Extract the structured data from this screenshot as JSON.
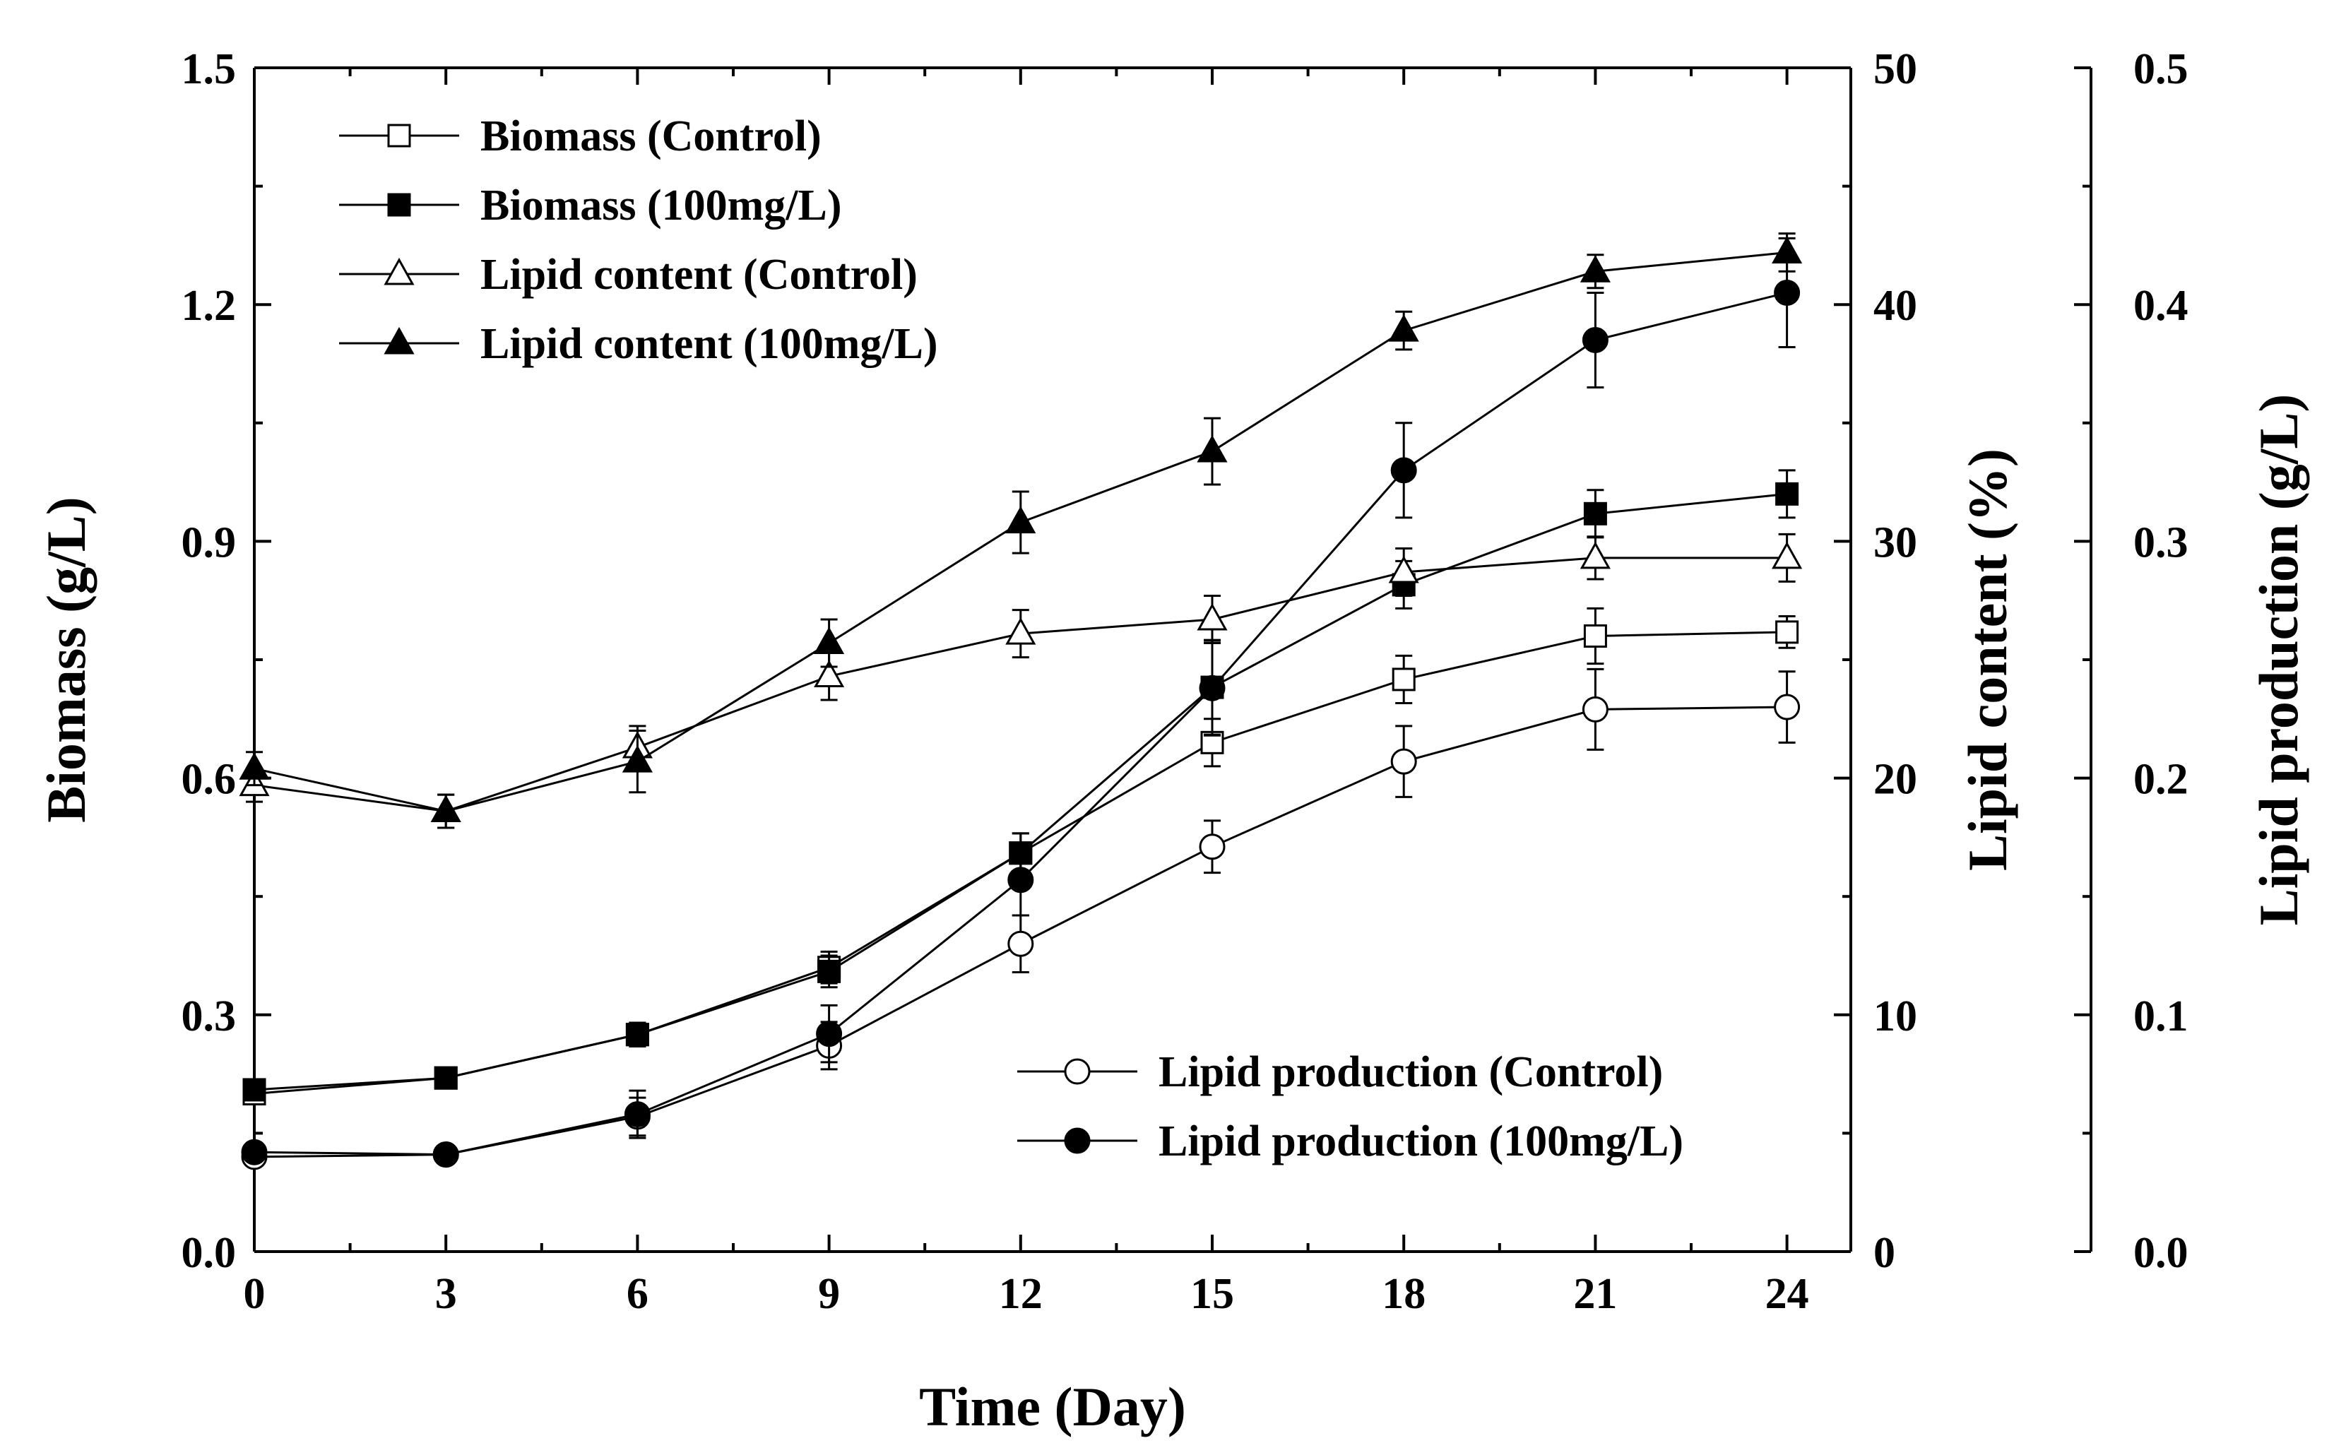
{
  "chart_data": {
    "type": "line",
    "title": "",
    "xlabel": "Time (Day)",
    "xlim": [
      0,
      25
    ],
    "x_ticks": [
      0,
      3,
      6,
      9,
      12,
      15,
      18,
      21,
      24
    ],
    "x_tick_labels": [
      "0",
      "3",
      "6",
      "9",
      "12",
      "15",
      "18",
      "21",
      "24"
    ],
    "grid": false,
    "legend_location": [
      "top-left",
      "bottom-right"
    ],
    "axes": [
      {
        "id": "biomass",
        "side": "left",
        "label": "Biomass (g/L)",
        "range": [
          0,
          1.5
        ],
        "ticks": [
          0,
          0.3,
          0.6,
          0.9,
          1.2,
          1.5
        ],
        "tick_labels": [
          "0.0",
          "0.3",
          "0.6",
          "0.9",
          "1.2",
          "1.5"
        ]
      },
      {
        "id": "lipid_content",
        "side": "right",
        "label": "Lipid content (%)",
        "range": [
          0,
          50
        ],
        "ticks": [
          0,
          10,
          20,
          30,
          40,
          50
        ],
        "tick_labels": [
          "0",
          "10",
          "20",
          "30",
          "40",
          "50"
        ]
      },
      {
        "id": "lipid_production",
        "side": "right-outer",
        "label": "Lipid production (g/L)",
        "range": [
          0,
          0.5
        ],
        "ticks": [
          0,
          0.1,
          0.2,
          0.3,
          0.4,
          0.5
        ],
        "tick_labels": [
          "0.0",
          "0.1",
          "0.2",
          "0.3",
          "0.4",
          "0.5"
        ]
      }
    ],
    "series": [
      {
        "name": "Biomass (Control)",
        "axis": "biomass",
        "marker": "square",
        "filled": false,
        "legend_group": "top",
        "x": [
          0,
          3,
          6,
          9,
          12,
          15,
          18,
          21,
          24
        ],
        "values": [
          0.2,
          0.22,
          0.275,
          0.36,
          0.505,
          0.645,
          0.725,
          0.78,
          0.785
        ],
        "errors": [
          0.01,
          0.01,
          0.015,
          0.02,
          0.025,
          0.03,
          0.03,
          0.035,
          0.02
        ]
      },
      {
        "name": "Biomass (100mg/L)",
        "axis": "biomass",
        "marker": "square",
        "filled": true,
        "legend_group": "top",
        "x": [
          0,
          3,
          6,
          9,
          12,
          15,
          18,
          21,
          24
        ],
        "values": [
          0.205,
          0.22,
          0.275,
          0.355,
          0.505,
          0.715,
          0.845,
          0.935,
          0.96
        ],
        "errors": [
          0.01,
          0.01,
          0.015,
          0.02,
          0.025,
          0.06,
          0.03,
          0.03,
          0.03
        ]
      },
      {
        "name": "Lipid content (Control)",
        "axis": "lipid_content",
        "marker": "triangle",
        "filled": false,
        "legend_group": "top",
        "x": [
          0,
          3,
          6,
          9,
          12,
          15,
          18,
          21,
          24
        ],
        "values": [
          19.7,
          18.6,
          21.3,
          24.3,
          26.1,
          26.7,
          28.7,
          29.3,
          29.3
        ],
        "errors": [
          0.7,
          0.7,
          0.9,
          1.0,
          1.0,
          1.0,
          1.0,
          0.9,
          1.0
        ]
      },
      {
        "name": "Lipid content (100mg/L)",
        "axis": "lipid_content",
        "marker": "triangle",
        "filled": true,
        "legend_group": "top",
        "x": [
          0,
          3,
          6,
          9,
          12,
          15,
          18,
          21,
          24
        ],
        "values": [
          20.4,
          18.6,
          20.7,
          25.7,
          30.8,
          33.8,
          38.9,
          41.4,
          42.2
        ],
        "errors": [
          0.7,
          0.7,
          1.3,
          1.0,
          1.3,
          1.4,
          0.8,
          0.7,
          0.8
        ]
      },
      {
        "name": "Lipid production (Control)",
        "axis": "lipid_production",
        "marker": "circle",
        "filled": false,
        "legend_group": "bottom",
        "x": [
          0,
          3,
          6,
          9,
          12,
          15,
          18,
          21,
          24
        ],
        "values": [
          0.04,
          0.041,
          0.057,
          0.087,
          0.13,
          0.171,
          0.207,
          0.229,
          0.23
        ],
        "errors": [
          0.003,
          0.003,
          0.008,
          0.01,
          0.012,
          0.011,
          0.015,
          0.017,
          0.015
        ]
      },
      {
        "name": "Lipid production (100mg/L)",
        "axis": "lipid_production",
        "marker": "circle",
        "filled": true,
        "legend_group": "bottom",
        "x": [
          0,
          3,
          6,
          9,
          12,
          15,
          18,
          21,
          24
        ],
        "values": [
          0.042,
          0.041,
          0.058,
          0.092,
          0.157,
          0.238,
          0.33,
          0.385,
          0.405
        ],
        "errors": [
          0.003,
          0.003,
          0.01,
          0.012,
          0.015,
          0.02,
          0.02,
          0.02,
          0.023
        ]
      }
    ]
  }
}
